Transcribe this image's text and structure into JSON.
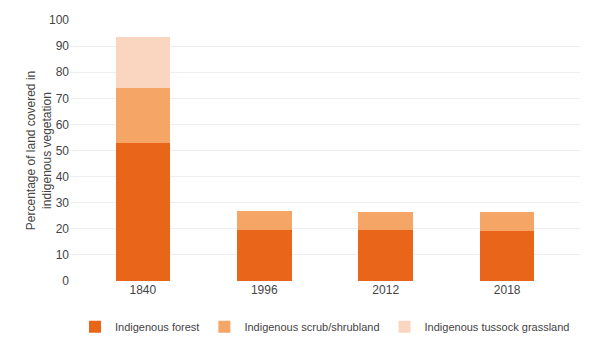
{
  "chart_data": {
    "type": "bar",
    "stacked": true,
    "categories": [
      "1840",
      "1996",
      "2012",
      "2018"
    ],
    "series": [
      {
        "name": "Indigenous forest",
        "color": "#E8651A",
        "values": [
          53,
          19.5,
          19.5,
          19.0
        ]
      },
      {
        "name": "Indigenous scrub/shrubland",
        "color": "#F5A565",
        "values": [
          21,
          7.5,
          7.0,
          7.5
        ]
      },
      {
        "name": "Indigenous tussock grassland",
        "color": "#FAD5C0",
        "values": [
          19.5,
          0,
          0,
          0
        ]
      }
    ],
    "ylabel": "Percentage of land covered in\nindigenous vegetation",
    "ylim": [
      0,
      100
    ],
    "yticks": [
      0,
      10,
      20,
      30,
      40,
      50,
      60,
      70,
      80,
      90,
      100
    ],
    "grid": true,
    "legend": "bottom"
  }
}
